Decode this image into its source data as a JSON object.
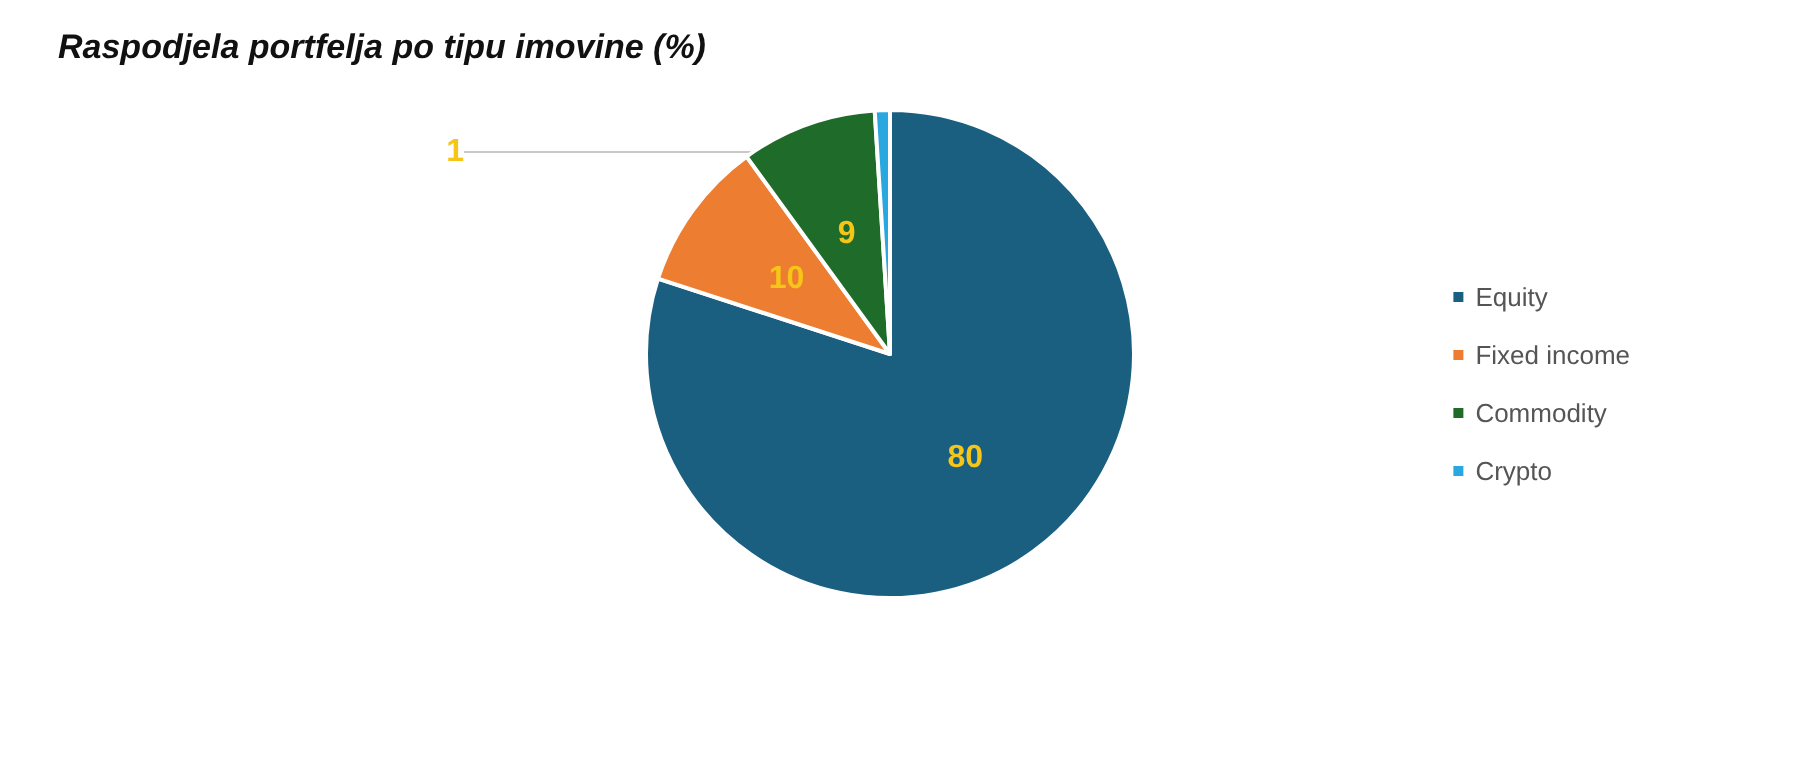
{
  "chart_data": {
    "type": "pie",
    "title": "Raspodjela portfelja po tipu imovine (%)",
    "categories": [
      "Equity",
      "Fixed income",
      "Commodity",
      "Crypto"
    ],
    "values": [
      80,
      10,
      9,
      1
    ],
    "colors": [
      "#1a5f80",
      "#ed7d31",
      "#1e6b2a",
      "#29a8e0"
    ],
    "data_labels": true,
    "legend": "right"
  }
}
